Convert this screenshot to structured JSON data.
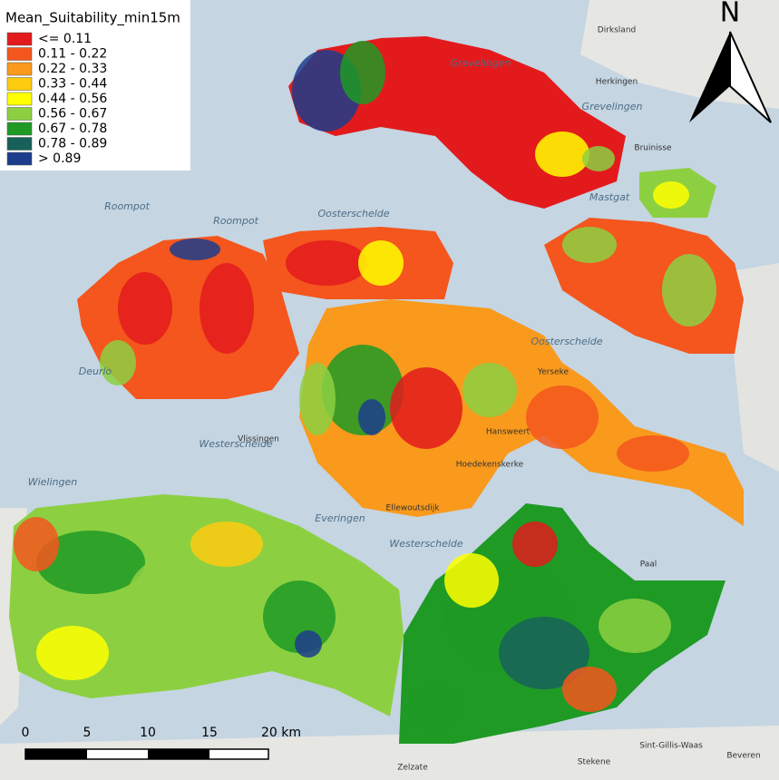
{
  "legend": {
    "title": "Mean_Suitability_min15m",
    "entries": [
      {
        "label": "<= 0.11",
        "color": "#e31a1c"
      },
      {
        "label": "0.11 - 0.22",
        "color": "#f4561d"
      },
      {
        "label": "0.22 - 0.33",
        "color": "#f99a1c"
      },
      {
        "label": "0.33 - 0.44",
        "color": "#fdcb10"
      },
      {
        "label": "0.44 - 0.56",
        "color": "#ffff00"
      },
      {
        "label": "0.56 - 0.67",
        "color": "#8cd042"
      },
      {
        "label": "0.67 - 0.78",
        "color": "#1e9a25"
      },
      {
        "label": "0.78 - 0.89",
        "color": "#17615a"
      },
      {
        "label": "> 0.89",
        "color": "#1c3d8c"
      }
    ]
  },
  "north_arrow": "N",
  "scale_bar": {
    "labels": [
      "0",
      "5",
      "10",
      "15",
      "20 km"
    ]
  },
  "places": [
    "Vlissingen",
    "Oosterschelde",
    "Oosterschelde",
    "Westerschelde",
    "Westerschelde",
    "Wielingen",
    "Roompot",
    "Roompot",
    "Grevelingen",
    "Grevelingen",
    "Mastgat",
    "Yerseke",
    "Everingen",
    "Hansweert",
    "Hoedekenskerke",
    "Ellewoutsdijk",
    "Bruinisse",
    "Dirksland",
    "Herkingen",
    "Stekene",
    "Beveren",
    "Zelzate",
    "Sint-Gillis-Waas",
    "Deurlo",
    "Paal"
  ]
}
